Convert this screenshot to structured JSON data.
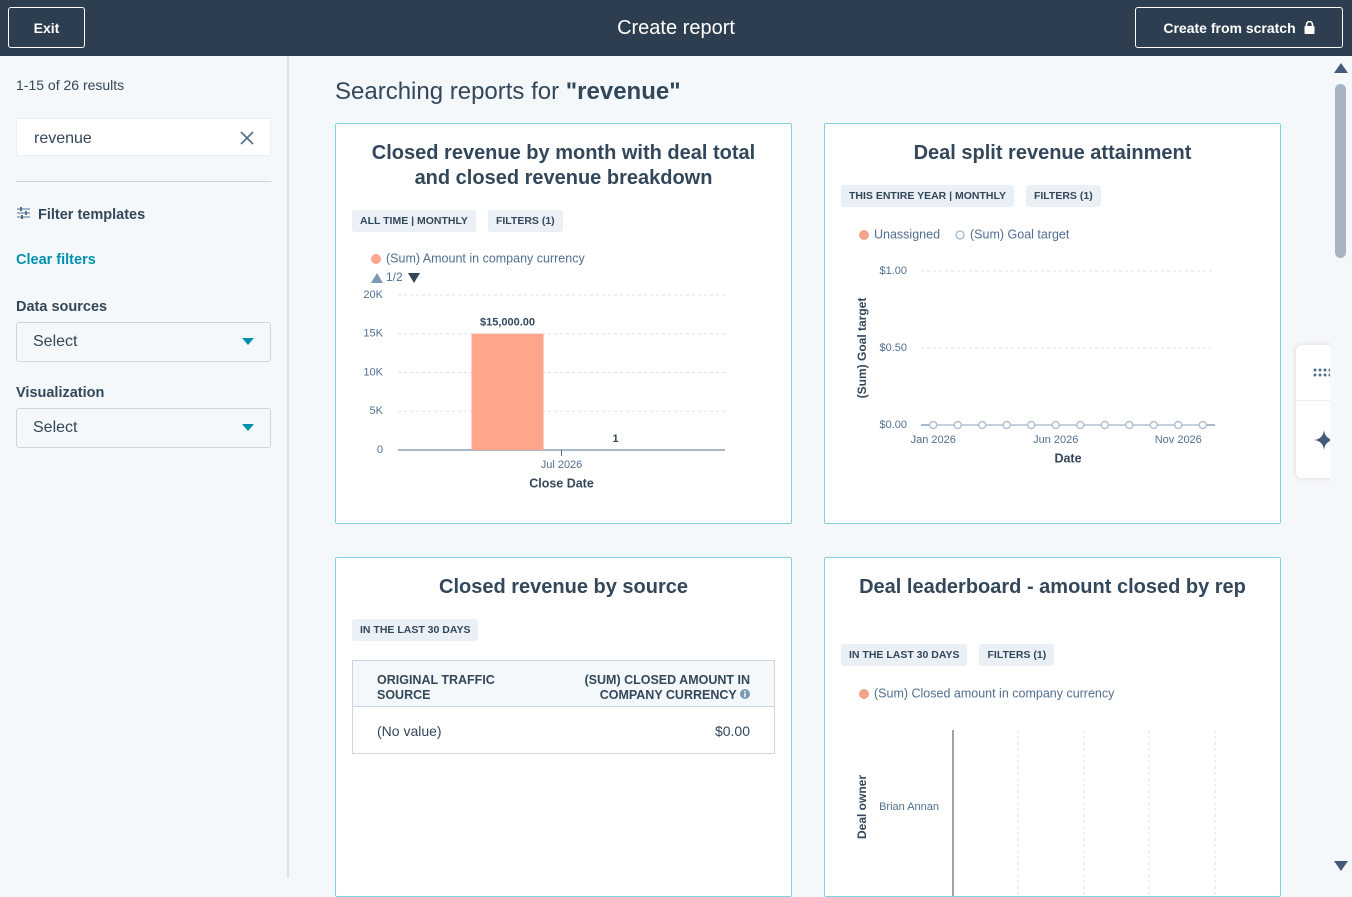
{
  "header": {
    "exit": "Exit",
    "title": "Create report",
    "create_button": "Create from scratch"
  },
  "sidebar": {
    "results": "1-15 of 26 results",
    "search": "revenue",
    "filter_templates": "Filter templates",
    "clear_filters": "Clear filters",
    "data_sources": {
      "label": "Data sources",
      "placeholder": "Select"
    },
    "visualization": {
      "label": "Visualization",
      "placeholder": "Select"
    }
  },
  "main": {
    "heading_prefix": "Searching reports for",
    "heading_query": "\"revenue\""
  },
  "reports": [
    {
      "title": "Closed revenue by month with deal total and closed revenue breakdown",
      "tags": [
        "ALL TIME | MONTHLY",
        "FILTERS (1)"
      ],
      "legend_page": "1/2",
      "chart_data": {
        "type": "bar",
        "categories": [
          "Jul 2026"
        ],
        "xlabel": "Close Date",
        "series": [
          {
            "name": "(Sum) Amount in company currency",
            "color": "#ffa58c",
            "values": [
              15000
            ],
            "value_labels": [
              "$15,000.00"
            ]
          },
          {
            "values": [
              1
            ]
          }
        ],
        "ylim": [
          0,
          20000
        ],
        "yticks": [
          0,
          {
            "value": 5000,
            "label": "5K"
          },
          {
            "value": 10000,
            "label": "10K"
          },
          {
            "value": 15000,
            "label": "15K"
          },
          {
            "value": 20000,
            "label": "20K"
          }
        ],
        "grid": true,
        "data_labels": true
      }
    },
    {
      "title": "Deal split revenue attainment",
      "tags": [
        "THIS ENTIRE YEAR | MONTHLY",
        "FILTERS (1)"
      ],
      "chart_data": {
        "type": "line",
        "categories": [
          "Jan 2026",
          null,
          null,
          null,
          null,
          "Jun 2026",
          null,
          null,
          null,
          null,
          "Nov 2026",
          null
        ],
        "xlabel": "Date",
        "ylabel": "(Sum) Goal target",
        "series": [
          {
            "name": "Unassigned",
            "color": "#f2a488",
            "marker": "filled",
            "values": [
              null,
              null,
              null,
              null,
              null,
              null,
              null,
              null,
              null,
              null,
              null,
              null
            ]
          },
          {
            "name": "(Sum) Goal target",
            "color": "#b0c1d4",
            "marker": "open",
            "values": [
              0,
              0,
              0,
              0,
              0,
              0,
              0,
              0,
              0,
              0,
              0,
              0
            ]
          }
        ],
        "ylim": [
          0,
          1
        ],
        "yticks": [
          {
            "value": 0,
            "label": "$0.00"
          },
          {
            "value": 0.5,
            "label": "$0.50"
          },
          {
            "value": 1,
            "label": "$1.00"
          }
        ],
        "grid": true
      }
    },
    {
      "title": "Closed revenue by source",
      "tags": [
        "IN THE LAST 30 DAYS"
      ],
      "table": {
        "columns": [
          "ORIGINAL TRAFFIC SOURCE",
          "(SUM) CLOSED AMOUNT IN COMPANY CURRENCY"
        ],
        "rows": [
          [
            "(No value)",
            "$0.00"
          ]
        ]
      }
    },
    {
      "title": "Deal leaderboard - amount closed by rep",
      "tags": [
        "IN THE LAST 30 DAYS",
        "FILTERS (1)"
      ],
      "chart_data": {
        "type": "hbar",
        "categories": [
          "Brian Annan"
        ],
        "ylabel": "Deal owner",
        "series": [
          {
            "name": "(Sum) Closed amount in company currency",
            "color": "#f2a488",
            "values": [
              0
            ]
          }
        ],
        "grid": true
      }
    }
  ]
}
